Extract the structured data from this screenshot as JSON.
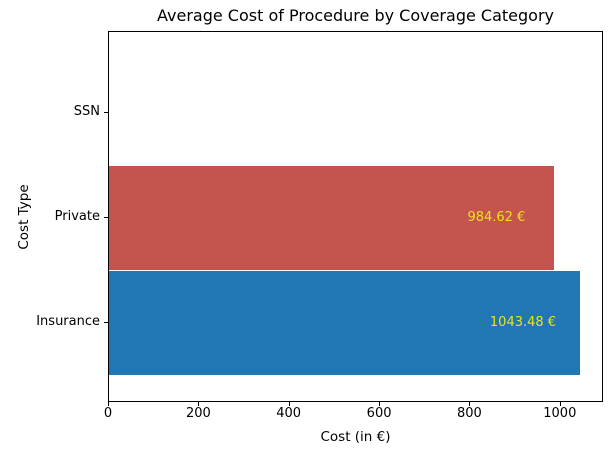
{
  "chart_data": {
    "type": "bar",
    "orientation": "horizontal",
    "title": "Average Cost of Procedure by Coverage Category",
    "xlabel": "Cost (in €)",
    "ylabel": "Cost Type",
    "categories": [
      "SSN",
      "Private",
      "Insurance"
    ],
    "values": [
      0,
      984.62,
      1043.48
    ],
    "bar_colors": [
      null,
      "#c5544e",
      "#2077b4"
    ],
    "bar_labels": [
      "",
      "984.62 €",
      "1043.48 €"
    ],
    "bar_label_color": "#e9e517",
    "xticks": [
      0,
      200,
      400,
      600,
      800,
      1000
    ],
    "xlim": [
      0,
      1095.7
    ],
    "grid": false,
    "legend": null,
    "axis_color": "#000000",
    "background_color": "#ffffff"
  }
}
